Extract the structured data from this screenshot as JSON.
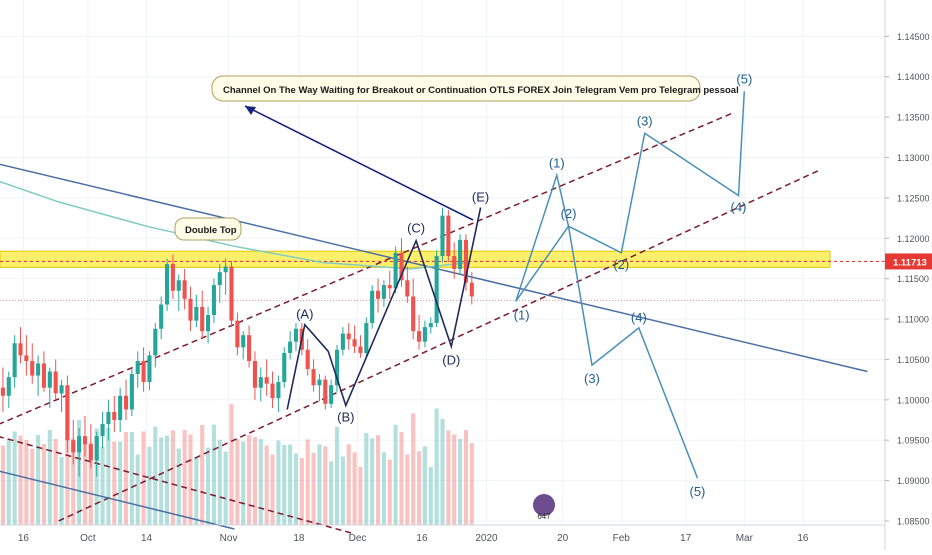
{
  "chart_data": {
    "type": "candlestick",
    "instrument_price_label": "1.11713",
    "y_axis": {
      "ylim": [
        1.0845,
        1.1495
      ],
      "ticks": [
        "1.14500",
        "1.14000",
        "1.13500",
        "1.13000",
        "1.12500",
        "1.12000",
        "1.11500",
        "1.11000",
        "1.10500",
        "1.10000",
        "1.09500",
        "1.09000",
        "1.08500"
      ],
      "tick_values": [
        1.145,
        1.14,
        1.135,
        1.13,
        1.125,
        1.12,
        1.115,
        1.11,
        1.105,
        1.1,
        1.095,
        1.09,
        1.085
      ]
    },
    "x_axis": {
      "xlim": [
        0,
        151
      ],
      "ticks": [
        "16",
        "Oct",
        "14",
        "Nov",
        "18",
        "Dec",
        "16",
        "2020",
        "20",
        "Feb",
        "17",
        "Mar",
        "16"
      ],
      "tick_positions": [
        4,
        15,
        25,
        39,
        51,
        61,
        72,
        83,
        96,
        106,
        117,
        127,
        137
      ]
    },
    "current_price": 1.11713,
    "dotted_price": 1.1123,
    "resistance_zone": [
      1.1164,
      1.1184
    ],
    "annotations": {
      "channel_note": "Channel On The Way  Waiting for Breakout or Continuation    OTLS FOREX Join Telegram     Vem pro Telegram pessoal",
      "double_top": "Double Top"
    },
    "historical_wave_labels": [
      {
        "text": "(A)",
        "x": 52,
        "y": 1.1093
      },
      {
        "text": "(B)",
        "x": 59,
        "y": 1.0993
      },
      {
        "text": "(C)",
        "x": 71,
        "y": 1.1197
      },
      {
        "text": "(D)",
        "x": 77,
        "y": 1.1066
      },
      {
        "text": "(E)",
        "x": 82,
        "y": 1.1238
      }
    ],
    "bullish_path_labels": [
      {
        "text": "(1)",
        "x": 95,
        "y": 1.1278
      },
      {
        "text": "(2)",
        "x": 97,
        "y": 1.1215
      },
      {
        "text": "(3)",
        "x": 110,
        "y": 1.133
      },
      {
        "text": "(4)",
        "x": 126,
        "y": 1.1253
      },
      {
        "text": "(5)",
        "x": 127,
        "y": 1.1382
      }
    ],
    "bearish_path_labels": [
      {
        "text": "(1)",
        "x": 89,
        "y": 1.1122
      },
      {
        "text": "(2)",
        "x": 106,
        "y": 1.1182
      },
      {
        "text": "(3)",
        "x": 101,
        "y": 1.1043
      },
      {
        "text": "(4)",
        "x": 109,
        "y": 1.1089
      },
      {
        "text": "(5)",
        "x": 119,
        "y": 1.0903
      }
    ],
    "candles": [
      [
        1.1015,
        1.104,
        1.0985,
        1.1005
      ],
      [
        1.1005,
        1.1035,
        1.099,
        1.1028
      ],
      [
        1.1028,
        1.108,
        1.1015,
        1.107
      ],
      [
        1.107,
        1.109,
        1.1045,
        1.1055
      ],
      [
        1.1055,
        1.108,
        1.103,
        1.1048
      ],
      [
        1.1048,
        1.107,
        1.102,
        1.103
      ],
      [
        1.103,
        1.1055,
        1.1005,
        1.1045
      ],
      [
        1.1045,
        1.106,
        1.101,
        1.1015
      ],
      [
        1.1015,
        1.104,
        1.099,
        1.1035
      ],
      [
        1.1035,
        1.105,
        1.1,
        1.1008
      ],
      [
        1.1008,
        1.1025,
        1.0985,
        1.1018
      ],
      [
        1.1018,
        1.103,
        1.0935,
        1.095
      ],
      [
        1.095,
        1.0975,
        1.092,
        1.0935
      ],
      [
        1.0935,
        1.0965,
        1.0905,
        1.0955
      ],
      [
        1.0955,
        1.098,
        1.093,
        1.0945
      ],
      [
        1.0945,
        1.097,
        1.0915,
        1.0925
      ],
      [
        1.0925,
        1.096,
        1.0905,
        1.0955
      ],
      [
        1.0955,
        1.0985,
        1.094,
        1.097
      ],
      [
        1.097,
        1.1,
        1.095,
        1.0985
      ],
      [
        1.0985,
        1.1005,
        1.096,
        1.0975
      ],
      [
        1.0975,
        1.1015,
        1.096,
        1.1005
      ],
      [
        1.1005,
        1.1025,
        1.0975,
        1.0988
      ],
      [
        1.0988,
        1.104,
        1.098,
        1.1032
      ],
      [
        1.1032,
        1.106,
        1.1015,
        1.1048
      ],
      [
        1.1048,
        1.1065,
        1.101,
        1.1022
      ],
      [
        1.1022,
        1.106,
        1.1012,
        1.1055
      ],
      [
        1.1055,
        1.1095,
        1.104,
        1.1088
      ],
      [
        1.1088,
        1.1128,
        1.1075,
        1.1118
      ],
      [
        1.1118,
        1.1175,
        1.111,
        1.1168
      ],
      [
        1.1168,
        1.118,
        1.1125,
        1.1135
      ],
      [
        1.1135,
        1.1155,
        1.111,
        1.1148
      ],
      [
        1.1148,
        1.1162,
        1.1112,
        1.1125
      ],
      [
        1.1125,
        1.114,
        1.1085,
        1.1098
      ],
      [
        1.1098,
        1.113,
        1.109,
        1.1115
      ],
      [
        1.1115,
        1.1135,
        1.1075,
        1.1085
      ],
      [
        1.1085,
        1.1115,
        1.107,
        1.1105
      ],
      [
        1.1105,
        1.115,
        1.1095,
        1.1142
      ],
      [
        1.1142,
        1.1168,
        1.112,
        1.1158
      ],
      [
        1.1158,
        1.1175,
        1.113,
        1.1165
      ],
      [
        1.1165,
        1.1172,
        1.109,
        1.1098
      ],
      [
        1.1098,
        1.1108,
        1.1055,
        1.1065
      ],
      [
        1.1065,
        1.1085,
        1.105,
        1.108
      ],
      [
        1.108,
        1.1092,
        1.104,
        1.1048
      ],
      [
        1.1048,
        1.106,
        1.1,
        1.1015
      ],
      [
        1.1015,
        1.104,
        1.0998,
        1.1028
      ],
      [
        1.1028,
        1.105,
        1.1005,
        1.102
      ],
      [
        1.102,
        1.1035,
        1.099,
        1.1002
      ],
      [
        1.1002,
        1.103,
        1.0985,
        1.1022
      ],
      [
        1.1022,
        1.1065,
        1.1015,
        1.1058
      ],
      [
        1.1058,
        1.1085,
        1.105,
        1.1072
      ],
      [
        1.1072,
        1.1095,
        1.106,
        1.1088
      ],
      [
        1.1088,
        1.1095,
        1.1055,
        1.1062
      ],
      [
        1.1062,
        1.1075,
        1.103,
        1.1038
      ],
      [
        1.1038,
        1.105,
        1.101,
        1.1018
      ],
      [
        1.1018,
        1.1032,
        1.0998,
        1.1025
      ],
      [
        1.1025,
        1.103,
        1.0988,
        1.0995
      ],
      [
        1.0995,
        1.1025,
        1.099,
        1.1018
      ],
      [
        1.1018,
        1.1068,
        1.101,
        1.1062
      ],
      [
        1.1062,
        1.109,
        1.1055,
        1.1082
      ],
      [
        1.1082,
        1.1095,
        1.1062,
        1.1075
      ],
      [
        1.1075,
        1.1092,
        1.1058,
        1.1066
      ],
      [
        1.1066,
        1.108,
        1.1052,
        1.1058
      ],
      [
        1.1058,
        1.1102,
        1.1052,
        1.1095
      ],
      [
        1.1095,
        1.1142,
        1.1088,
        1.1135
      ],
      [
        1.1135,
        1.115,
        1.1108,
        1.1125
      ],
      [
        1.1125,
        1.1148,
        1.1115,
        1.1142
      ],
      [
        1.1142,
        1.116,
        1.1125,
        1.1138
      ],
      [
        1.1138,
        1.119,
        1.1132,
        1.1182
      ],
      [
        1.1182,
        1.12,
        1.114,
        1.1148
      ],
      [
        1.1148,
        1.1165,
        1.112,
        1.1128
      ],
      [
        1.1128,
        1.115,
        1.1075,
        1.1085
      ],
      [
        1.1085,
        1.1105,
        1.1062,
        1.1072
      ],
      [
        1.1072,
        1.1098,
        1.1065,
        1.109
      ],
      [
        1.109,
        1.1102,
        1.1082,
        1.1095
      ],
      [
        1.1095,
        1.1185,
        1.109,
        1.1178
      ],
      [
        1.1178,
        1.1238,
        1.117,
        1.1228
      ],
      [
        1.1228,
        1.1235,
        1.117,
        1.1178
      ],
      [
        1.1178,
        1.1195,
        1.115,
        1.1162
      ],
      [
        1.1162,
        1.1205,
        1.1155,
        1.1198
      ],
      [
        1.1198,
        1.1205,
        1.1135,
        1.1145
      ],
      [
        1.1145,
        1.1158,
        1.1118,
        1.1128
      ]
    ],
    "volume_note": "volume histogram shown at bottom"
  },
  "logo": {
    "text": "647"
  }
}
